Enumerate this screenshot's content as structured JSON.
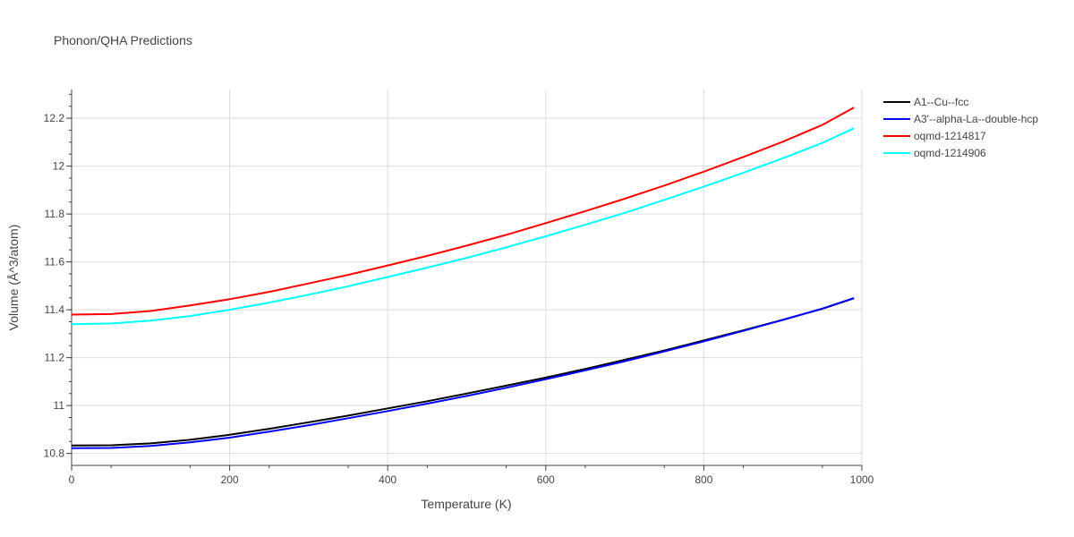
{
  "chart_data": {
    "type": "line",
    "title": "Phonon/QHA Predictions",
    "xlabel": "Temperature (K)",
    "ylabel": "Volume (Å^3/atom)",
    "xlim": [
      0,
      1000
    ],
    "ylim": [
      10.75,
      12.32
    ],
    "x_ticks": [
      0,
      200,
      400,
      600,
      800,
      1000
    ],
    "x_tick_labels": [
      "0",
      "200",
      "400",
      "600",
      "800",
      "1000"
    ],
    "y_ticks": [
      10.8,
      11,
      11.2,
      11.4,
      11.6,
      11.8,
      12,
      12.2
    ],
    "y_tick_labels": [
      "10.8",
      "11",
      "11.2",
      "11.4",
      "11.6",
      "11.8",
      "12",
      "12.2"
    ],
    "grid": true,
    "legend_position": "top-right",
    "x": [
      0,
      50,
      100,
      150,
      200,
      250,
      300,
      350,
      400,
      450,
      500,
      550,
      600,
      650,
      700,
      750,
      800,
      850,
      900,
      950,
      990
    ],
    "series": [
      {
        "name": "A1--Cu--fcc",
        "color": "#000000",
        "values": [
          10.833,
          10.834,
          10.842,
          10.857,
          10.878,
          10.903,
          10.93,
          10.958,
          10.988,
          11.018,
          11.05,
          11.083,
          11.117,
          11.153,
          11.191,
          11.23,
          11.272,
          11.314,
          11.358,
          11.404,
          11.448
        ]
      },
      {
        "name": "A3'--alpha-La--double-hcp",
        "color": "#0000ff",
        "values": [
          10.822,
          10.823,
          10.831,
          10.846,
          10.866,
          10.891,
          10.918,
          10.947,
          10.977,
          11.008,
          11.04,
          11.074,
          11.11,
          11.147,
          11.185,
          11.226,
          11.268,
          11.312,
          11.358,
          11.405,
          11.449
        ]
      },
      {
        "name": "oqmd-1214817",
        "color": "#ff0000",
        "values": [
          11.38,
          11.382,
          11.395,
          11.418,
          11.444,
          11.475,
          11.51,
          11.546,
          11.585,
          11.625,
          11.668,
          11.713,
          11.762,
          11.812,
          11.864,
          11.919,
          11.977,
          12.038,
          12.102,
          12.172,
          12.245
        ]
      },
      {
        "name": "oqmd-1214906",
        "color": "#00ffff",
        "values": [
          11.34,
          11.343,
          11.355,
          11.374,
          11.4,
          11.43,
          11.463,
          11.498,
          11.537,
          11.576,
          11.617,
          11.661,
          11.707,
          11.755,
          11.805,
          11.859,
          11.914,
          11.972,
          12.033,
          12.097,
          12.158
        ]
      }
    ]
  }
}
